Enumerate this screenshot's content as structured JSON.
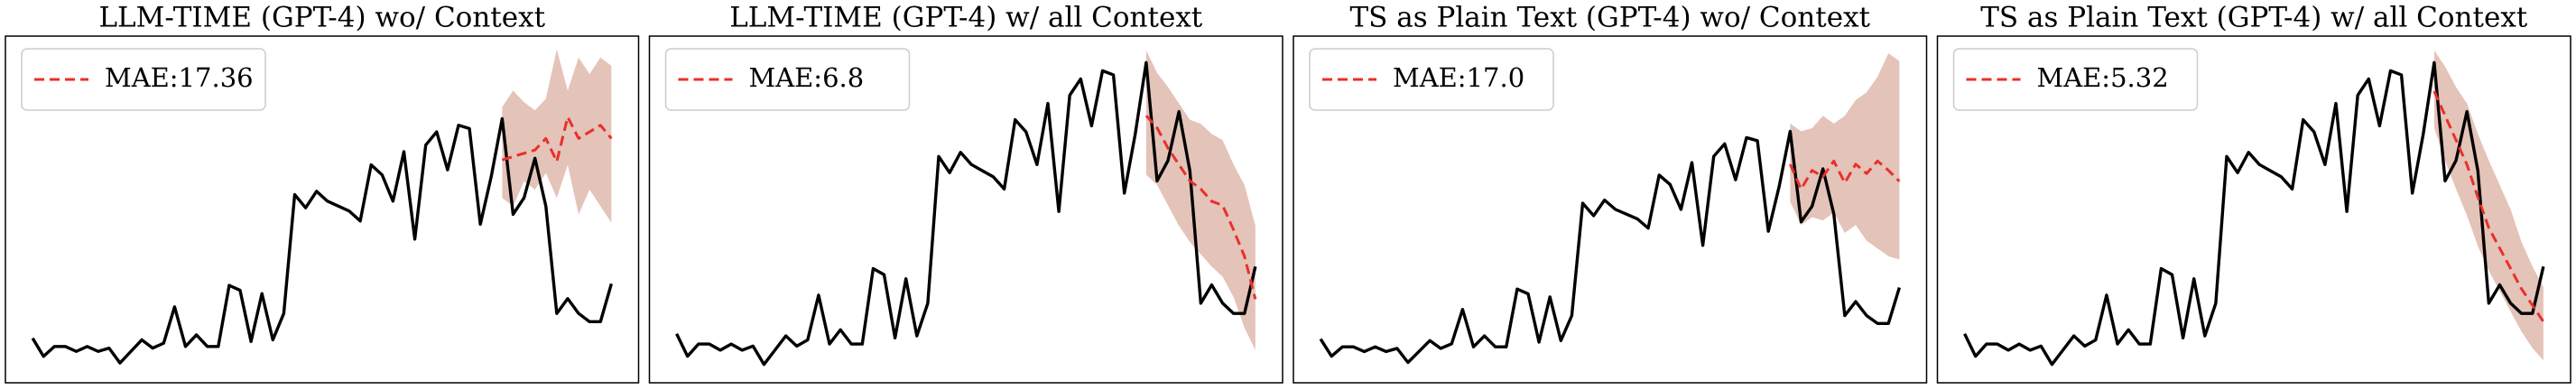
{
  "chart_data": [
    {
      "type": "line",
      "title": "LLM-TIME (GPT-4) wo/ Context",
      "legend": "upper left",
      "ylim": [
        0,
        210
      ],
      "x": [
        0,
        1,
        2,
        3,
        4,
        5,
        6,
        7,
        8,
        9,
        10,
        11,
        12,
        13,
        14,
        15,
        16,
        17,
        18,
        19,
        20,
        21,
        22,
        23,
        24,
        25,
        26,
        27,
        28,
        29,
        30,
        31,
        32,
        33,
        34,
        35,
        36,
        37,
        38,
        39,
        40,
        41,
        42,
        43,
        44,
        45,
        46,
        47,
        48,
        49,
        50,
        51,
        52,
        53
      ],
      "series": [
        {
          "color": "#000000",
          "values": [
            27,
            16,
            22,
            22,
            19,
            22,
            19,
            21,
            12,
            19,
            26,
            21,
            24,
            46,
            22,
            29,
            22,
            22,
            59,
            56,
            25,
            54,
            26,
            42,
            114,
            106,
            116,
            110,
            107,
            104,
            98,
            132,
            126,
            110,
            140,
            87,
            144,
            152,
            129,
            156,
            154,
            96,
            125,
            160,
            102,
            112,
            136,
            107,
            42,
            51,
            42,
            37,
            37,
            60
          ]
        },
        {
          "name": "MAE:17.36",
          "color": "#e8302a",
          "dashed": true,
          "band_color": "#c47a63",
          "x": [
            43,
            44,
            45,
            46,
            47,
            48,
            49,
            50,
            51,
            52,
            53
          ],
          "values": [
            135,
            137,
            139,
            141,
            148,
            134,
            161,
            148,
            152,
            156,
            148
          ],
          "upper": [
            167,
            177,
            170,
            165,
            172,
            202,
            177,
            197,
            187,
            197,
            192
          ],
          "lower": [
            112,
            107,
            122,
            117,
            127,
            112,
            132,
            102,
            117,
            107,
            97
          ]
        }
      ]
    },
    {
      "type": "line",
      "title": "LLM-TIME (GPT-4) w/ all Context",
      "legend": "upper left",
      "ylim": [
        3,
        173
      ],
      "x": [
        0,
        1,
        2,
        3,
        4,
        5,
        6,
        7,
        8,
        9,
        10,
        11,
        12,
        13,
        14,
        15,
        16,
        17,
        18,
        19,
        20,
        21,
        22,
        23,
        24,
        25,
        26,
        27,
        28,
        29,
        30,
        31,
        32,
        33,
        34,
        35,
        36,
        37,
        38,
        39,
        40,
        41,
        42,
        43,
        44,
        45,
        46,
        47,
        48,
        49,
        50,
        51,
        52,
        53
      ],
      "series": [
        {
          "color": "#000000",
          "values": [
            27,
            16,
            22,
            22,
            19,
            22,
            19,
            21,
            12,
            19,
            26,
            21,
            24,
            46,
            22,
            29,
            22,
            22,
            59,
            56,
            25,
            54,
            26,
            42,
            114,
            106,
            116,
            110,
            107,
            104,
            98,
            132,
            126,
            110,
            140,
            87,
            144,
            152,
            129,
            156,
            154,
            96,
            125,
            160,
            102,
            112,
            136,
            107,
            42,
            51,
            42,
            37,
            37,
            60
          ]
        },
        {
          "name": "MAE:6.8",
          "color": "#e8302a",
          "dashed": true,
          "band_color": "#c47a63",
          "x": [
            43,
            44,
            45,
            46,
            47,
            48,
            49,
            50,
            51,
            52,
            53
          ],
          "values": [
            134,
            128,
            118,
            110,
            102,
            98,
            92,
            90,
            78,
            65,
            44
          ],
          "upper": [
            166,
            155,
            148,
            140,
            132,
            130,
            125,
            122,
            110,
            100,
            80
          ],
          "lower": [
            105,
            100,
            90,
            80,
            72,
            66,
            60,
            55,
            45,
            30,
            19
          ]
        }
      ]
    },
    {
      "type": "line",
      "title": "TS as Plain Text (GPT-4) wo/ Context",
      "legend": "upper left",
      "ylim": [
        -1,
        221
      ],
      "x": [
        0,
        1,
        2,
        3,
        4,
        5,
        6,
        7,
        8,
        9,
        10,
        11,
        12,
        13,
        14,
        15,
        16,
        17,
        18,
        19,
        20,
        21,
        22,
        23,
        24,
        25,
        26,
        27,
        28,
        29,
        30,
        31,
        32,
        33,
        34,
        35,
        36,
        37,
        38,
        39,
        40,
        41,
        42,
        43,
        44,
        45,
        46,
        47,
        48,
        49,
        50,
        51,
        52,
        53
      ],
      "series": [
        {
          "color": "#000000",
          "values": [
            27,
            16,
            22,
            22,
            19,
            22,
            19,
            21,
            12,
            19,
            26,
            21,
            24,
            46,
            22,
            29,
            22,
            22,
            59,
            56,
            25,
            54,
            26,
            42,
            114,
            106,
            116,
            110,
            107,
            104,
            98,
            132,
            126,
            110,
            140,
            87,
            144,
            152,
            129,
            156,
            154,
            96,
            125,
            160,
            102,
            112,
            136,
            107,
            42,
            51,
            42,
            37,
            37,
            60
          ]
        },
        {
          "name": "MAE:17.0",
          "color": "#e8302a",
          "dashed": true,
          "band_color": "#c47a63",
          "x": [
            43,
            44,
            45,
            46,
            47,
            48,
            49,
            50,
            51,
            52,
            53
          ],
          "values": [
            139,
            123,
            135,
            131,
            141,
            127,
            139,
            133,
            141,
            135,
            128
          ],
          "upper": [
            165,
            160,
            162,
            170,
            165,
            170,
            180,
            185,
            195,
            210,
            205
          ],
          "lower": [
            115,
            100,
            105,
            103,
            108,
            95,
            100,
            90,
            85,
            80,
            78
          ]
        }
      ]
    },
    {
      "type": "line",
      "title": "TS as Plain Text (GPT-4) w/ all Context",
      "legend": "upper left",
      "ylim": [
        3,
        173
      ],
      "x": [
        0,
        1,
        2,
        3,
        4,
        5,
        6,
        7,
        8,
        9,
        10,
        11,
        12,
        13,
        14,
        15,
        16,
        17,
        18,
        19,
        20,
        21,
        22,
        23,
        24,
        25,
        26,
        27,
        28,
        29,
        30,
        31,
        32,
        33,
        34,
        35,
        36,
        37,
        38,
        39,
        40,
        41,
        42,
        43,
        44,
        45,
        46,
        47,
        48,
        49,
        50,
        51,
        52,
        53
      ],
      "series": [
        {
          "color": "#000000",
          "values": [
            27,
            16,
            22,
            22,
            19,
            22,
            19,
            21,
            12,
            19,
            26,
            21,
            24,
            46,
            22,
            29,
            22,
            22,
            59,
            56,
            25,
            54,
            26,
            42,
            114,
            106,
            116,
            110,
            107,
            104,
            98,
            132,
            126,
            110,
            140,
            87,
            144,
            152,
            129,
            156,
            154,
            96,
            125,
            160,
            102,
            112,
            136,
            107,
            42,
            51,
            42,
            37,
            37,
            60
          ]
        },
        {
          "name": "MAE:5.32",
          "color": "#e8302a",
          "dashed": true,
          "band_color": "#c47a63",
          "x": [
            43,
            44,
            45,
            46,
            47,
            48,
            49,
            50,
            51,
            52,
            53
          ],
          "values": [
            146,
            134,
            122,
            110,
            94,
            79,
            69,
            59,
            49,
            41,
            33
          ],
          "upper": [
            166,
            158,
            148,
            140,
            125,
            112,
            100,
            88,
            72,
            60,
            50
          ],
          "lower": [
            128,
            112,
            98,
            85,
            70,
            58,
            48,
            38,
            28,
            20,
            14
          ]
        }
      ]
    }
  ]
}
